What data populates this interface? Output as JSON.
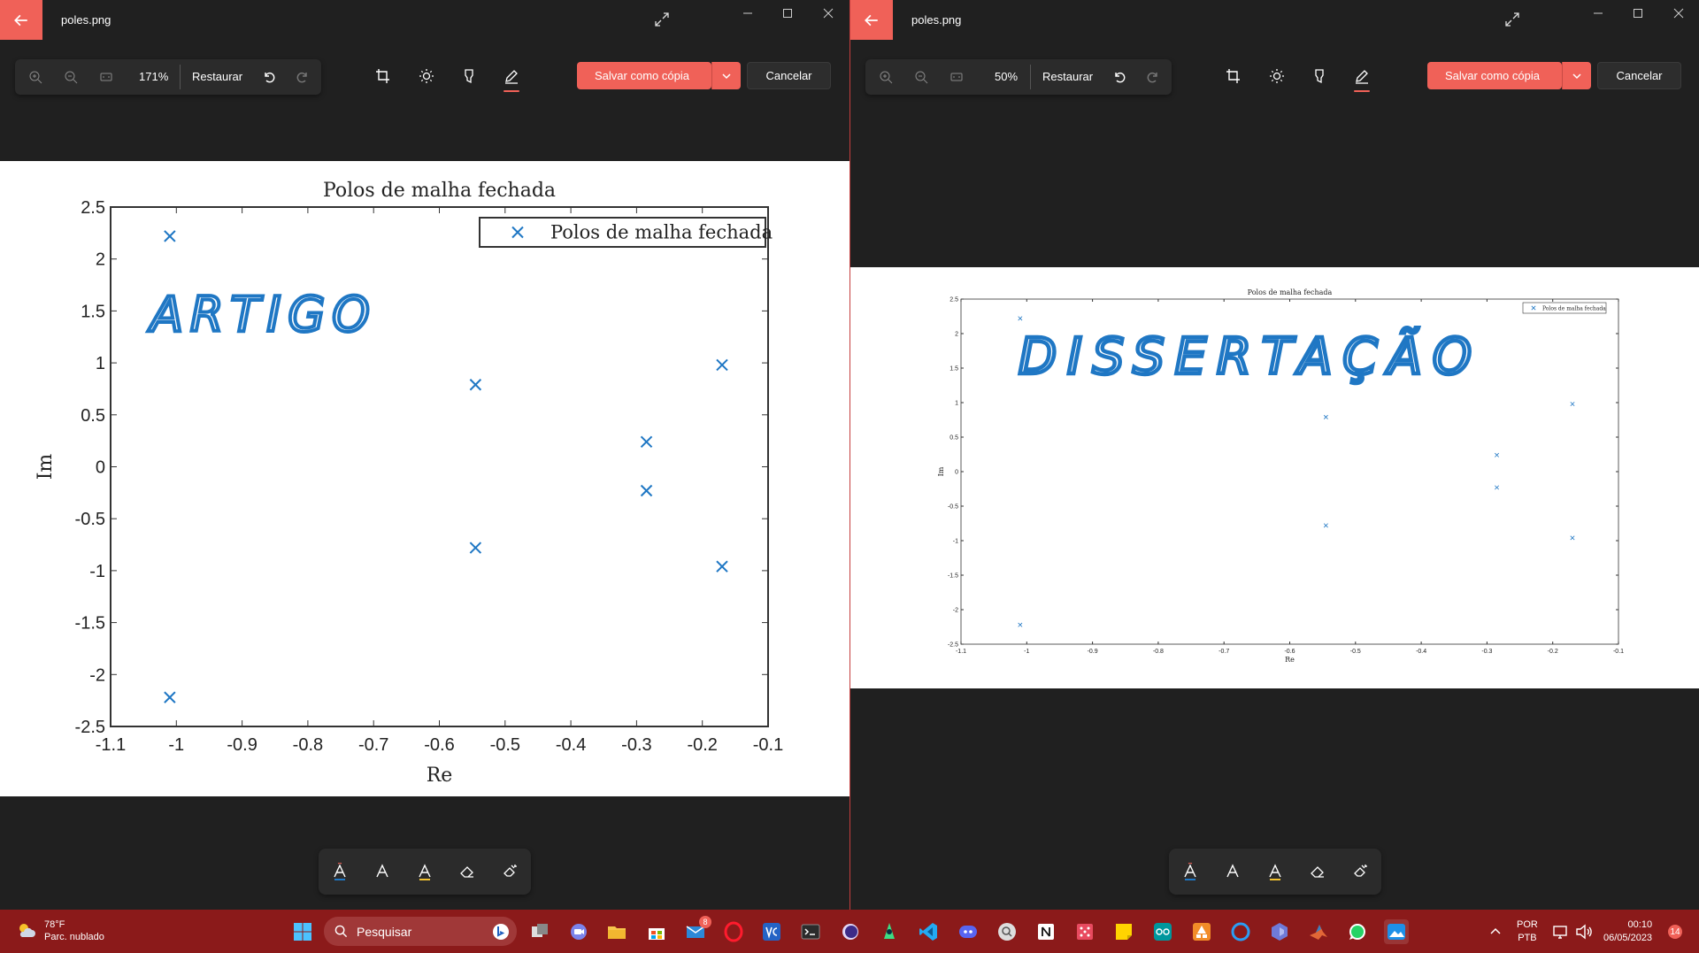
{
  "colors": {
    "accent": "#f06158",
    "marker": "#1f77c4",
    "ink": "#1f77c4"
  },
  "windows": [
    {
      "file_name": "poles.png",
      "zoom": "171%",
      "restore_label": "Restaurar",
      "save_label": "Salvar como cópia",
      "cancel_label": "Cancelar",
      "annotation_text": "ARTIGO"
    },
    {
      "file_name": "poles.png",
      "zoom": "50%",
      "restore_label": "Restaurar",
      "save_label": "Salvar como cópia",
      "cancel_label": "Cancelar",
      "annotation_text": "DISSERTAÇÃO"
    }
  ],
  "chart_data": {
    "type": "scatter",
    "title": "Polos de malha fechada",
    "xlabel": "Re",
    "ylabel": "Im",
    "xlim": [
      -1.1,
      -0.1
    ],
    "ylim": [
      -2.5,
      2.5
    ],
    "xticks": [
      "-1.1",
      "-1",
      "-0.9",
      "-0.8",
      "-0.7",
      "-0.6",
      "-0.5",
      "-0.4",
      "-0.3",
      "-0.2",
      "-0.1"
    ],
    "yticks": [
      "2.5",
      "2",
      "1.5",
      "1",
      "0.5",
      "0",
      "-0.5",
      "-1",
      "-1.5",
      "-2",
      "-2.5"
    ],
    "legend_position": "top-right",
    "series": [
      {
        "name": "Polos de malha fechada",
        "points": [
          [
            -1.01,
            2.22
          ],
          [
            -1.01,
            -2.22
          ],
          [
            -0.545,
            0.79
          ],
          [
            -0.545,
            -0.78
          ],
          [
            -0.285,
            0.24
          ],
          [
            -0.285,
            -0.23
          ],
          [
            -0.17,
            0.98
          ],
          [
            -0.17,
            -0.96
          ]
        ]
      }
    ]
  },
  "taskbar": {
    "weather_temp": "78°F",
    "weather_desc": "Parc. nublado",
    "search_placeholder": "Pesquisar",
    "mail_badge": "8",
    "lang_top": "POR",
    "lang_bottom": "PTB",
    "time": "00:10",
    "date": "06/05/2023",
    "notif_count": "14"
  }
}
